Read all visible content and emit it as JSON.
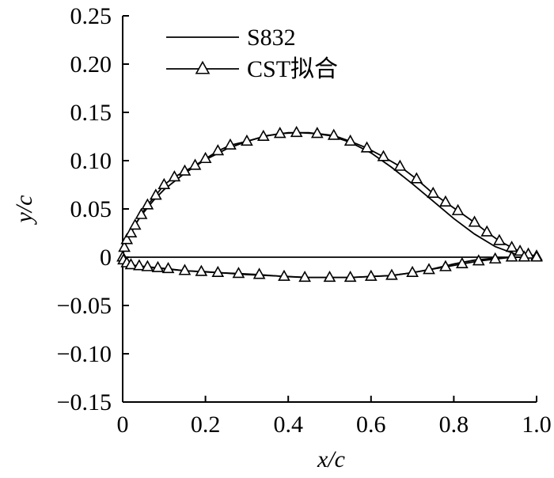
{
  "chart_data": {
    "type": "line",
    "xlabel": "x/c",
    "ylabel": "y/c",
    "xlim": [
      0,
      1.0
    ],
    "ylim": [
      -0.15,
      0.25
    ],
    "x_ticks": [
      0,
      0.2,
      0.4,
      0.6,
      0.8,
      1.0
    ],
    "x_tick_labels": [
      "0",
      "0.2",
      "0.4",
      "0.6",
      "0.8",
      "1.0"
    ],
    "y_ticks": [
      -0.15,
      -0.1,
      -0.05,
      0,
      0.05,
      0.1,
      0.15,
      0.2,
      0.25
    ],
    "y_tick_labels": [
      "−0.15",
      "−0.10",
      "−0.05",
      "0",
      "0.05",
      "0.10",
      "0.15",
      "0.20",
      "0.25"
    ],
    "grid": false,
    "legend": {
      "placement": "top-left",
      "entries": [
        "S832",
        "CST拟合"
      ]
    },
    "series": [
      {
        "name": "S832",
        "style": "solid-line",
        "upper": {
          "x": [
            0,
            0.005,
            0.01,
            0.02,
            0.03,
            0.05,
            0.075,
            0.1,
            0.15,
            0.2,
            0.25,
            0.3,
            0.35,
            0.4,
            0.45,
            0.5,
            0.55,
            0.6,
            0.65,
            0.7,
            0.75,
            0.8,
            0.85,
            0.9,
            0.95,
            1.0
          ],
          "y": [
            0,
            0.012,
            0.018,
            0.027,
            0.034,
            0.046,
            0.059,
            0.07,
            0.087,
            0.101,
            0.112,
            0.12,
            0.126,
            0.129,
            0.129,
            0.126,
            0.119,
            0.108,
            0.093,
            0.076,
            0.058,
            0.04,
            0.024,
            0.011,
            0.003,
            0
          ]
        },
        "lower": {
          "x": [
            0,
            0.01,
            0.02,
            0.05,
            0.1,
            0.15,
            0.2,
            0.3,
            0.4,
            0.45,
            0.5,
            0.55,
            0.6,
            0.65,
            0.7,
            0.75,
            0.8,
            0.85,
            0.9,
            0.95,
            1.0
          ],
          "y": [
            0,
            -0.006,
            -0.008,
            -0.01,
            -0.012,
            -0.014,
            -0.015,
            -0.018,
            -0.02,
            -0.021,
            -0.021,
            -0.021,
            -0.02,
            -0.019,
            -0.016,
            -0.012,
            -0.007,
            -0.003,
            -0.001,
            0,
            0
          ]
        },
        "camber_line": {
          "x": [
            0,
            0.2,
            0.4,
            0.6,
            0.8,
            1.0
          ],
          "y": [
            0,
            0,
            0,
            0,
            0,
            0
          ]
        }
      },
      {
        "name": "CST拟合",
        "style": "line-with-triangle-markers",
        "upper_points": {
          "x": [
            0,
            0.004,
            0.01,
            0.02,
            0.03,
            0.045,
            0.06,
            0.08,
            0.1,
            0.125,
            0.15,
            0.175,
            0.2,
            0.23,
            0.26,
            0.3,
            0.34,
            0.38,
            0.42,
            0.47,
            0.51,
            0.55,
            0.59,
            0.63,
            0.67,
            0.71,
            0.75,
            0.78,
            0.81,
            0.85,
            0.88,
            0.91,
            0.94,
            0.96,
            0.98,
            1.0
          ],
          "y": [
            0,
            0.01,
            0.018,
            0.025,
            0.033,
            0.044,
            0.054,
            0.064,
            0.075,
            0.083,
            0.089,
            0.095,
            0.102,
            0.11,
            0.116,
            0.12,
            0.125,
            0.128,
            0.129,
            0.128,
            0.126,
            0.12,
            0.113,
            0.104,
            0.094,
            0.081,
            0.066,
            0.057,
            0.048,
            0.036,
            0.026,
            0.017,
            0.01,
            0.006,
            0.003,
            0.001
          ]
        },
        "lower_points": {
          "x": [
            0.002,
            0.01,
            0.02,
            0.04,
            0.06,
            0.085,
            0.11,
            0.15,
            0.19,
            0.23,
            0.28,
            0.33,
            0.39,
            0.44,
            0.5,
            0.55,
            0.6,
            0.65,
            0.7,
            0.74,
            0.78,
            0.82,
            0.86,
            0.9,
            0.94,
            0.97,
            1.0
          ],
          "y": [
            -0.003,
            -0.006,
            -0.008,
            -0.009,
            -0.01,
            -0.011,
            -0.012,
            -0.014,
            -0.015,
            -0.016,
            -0.017,
            -0.018,
            -0.02,
            -0.021,
            -0.021,
            -0.021,
            -0.02,
            -0.019,
            -0.016,
            -0.013,
            -0.01,
            -0.007,
            -0.004,
            -0.002,
            0,
            0,
            0
          ]
        }
      }
    ]
  }
}
